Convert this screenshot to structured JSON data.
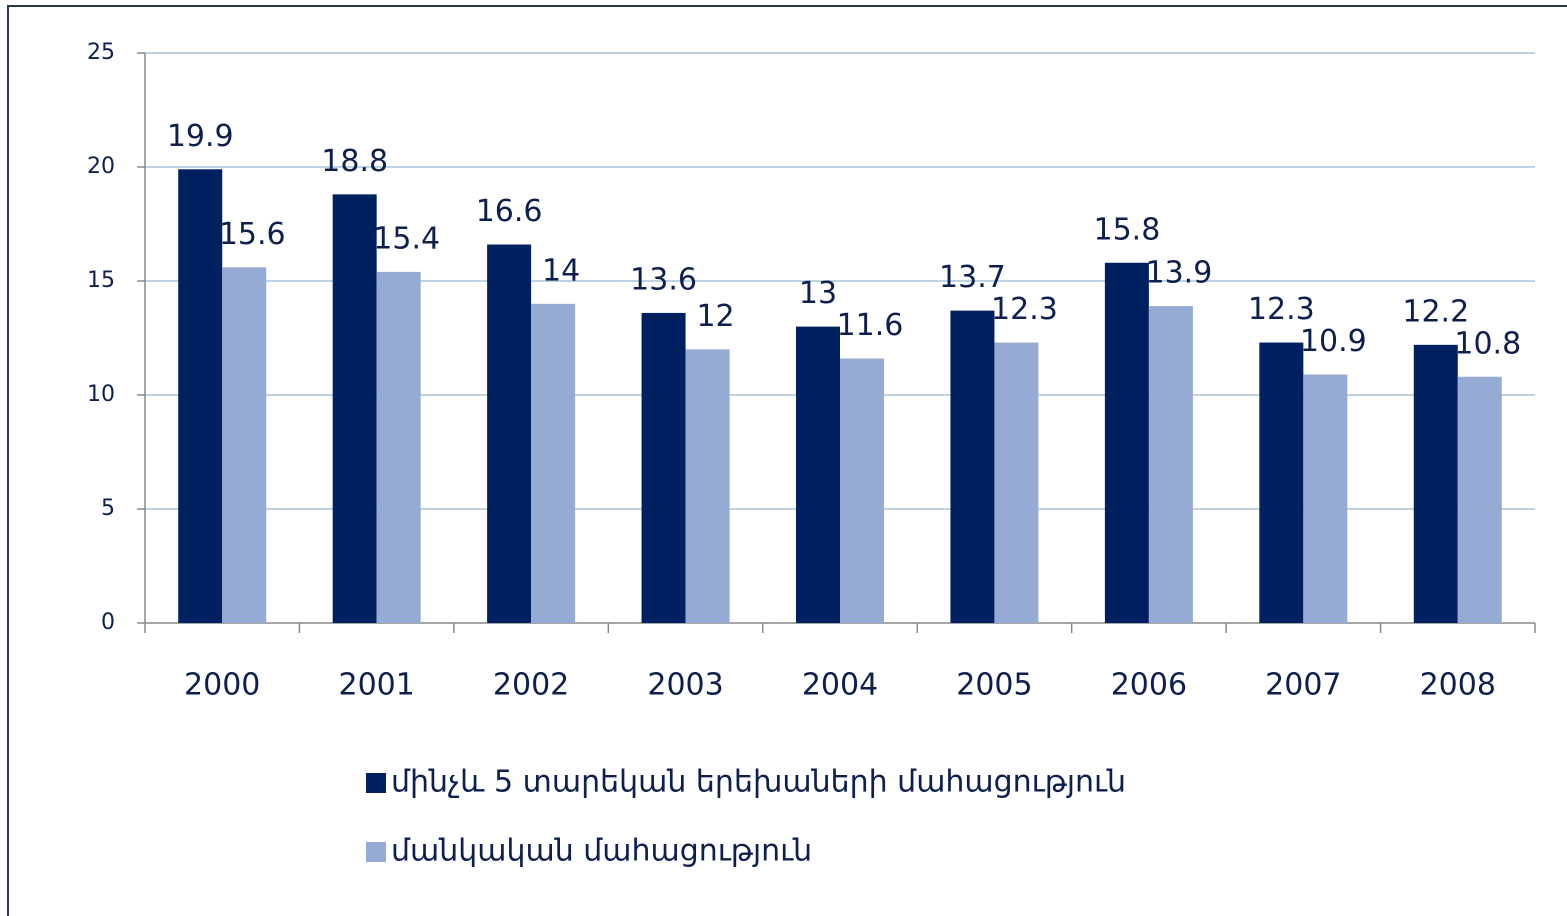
{
  "chart_data": {
    "type": "bar",
    "categories": [
      "2000",
      "2001",
      "2002",
      "2003",
      "2004",
      "2005",
      "2006",
      "2007",
      "2008"
    ],
    "series": [
      {
        "name": "մինչև 5 տարեկան երեխաների մահացություն",
        "color": "#002060",
        "values": [
          19.9,
          18.8,
          16.6,
          13.6,
          13,
          13.7,
          15.8,
          12.3,
          12.2
        ]
      },
      {
        "name": "մանկական մահացություն",
        "color": "#95abd3",
        "values": [
          15.6,
          15.4,
          14,
          12,
          11.6,
          12.3,
          13.9,
          10.9,
          10.8
        ]
      }
    ],
    "ylim": [
      0,
      25
    ],
    "yticks": [
      0,
      5,
      10,
      15,
      20,
      25
    ],
    "grid": true,
    "legend": "bottom"
  }
}
